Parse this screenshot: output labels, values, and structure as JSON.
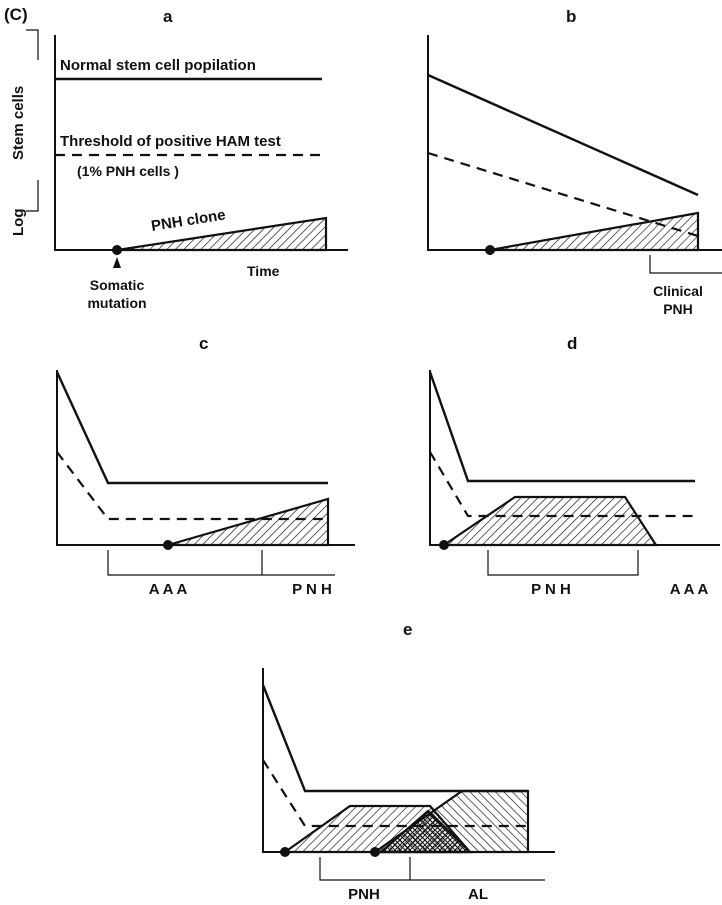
{
  "figure_label": "(C)",
  "panels": {
    "a": {
      "label": "a",
      "normal_population": "Normal stem cell popilation",
      "threshold": "Threshold of positive HAM test",
      "pnh_percent": "(1%   PNH cells       )",
      "clone": "PNH clone",
      "time": "Time",
      "somatic_1": "Somatic",
      "somatic_2": "mutation",
      "y_log": "Log",
      "y_stem": "Stem cells"
    },
    "b": {
      "label": "b",
      "clinical_1": "Clinical",
      "clinical_2": "PNH"
    },
    "c": {
      "label": "c",
      "phase_1": "A A A",
      "phase_2": "P N H"
    },
    "d": {
      "label": "d",
      "phase_1": "P N H",
      "phase_2": "A A A"
    },
    "e": {
      "label": "e",
      "phase_1": "PNH",
      "phase_2": "AL"
    }
  }
}
